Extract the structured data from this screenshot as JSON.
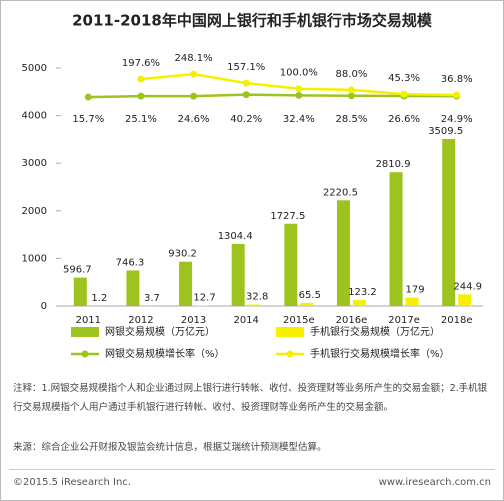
{
  "chart_data": {
    "type": "bar_line",
    "title": "2011-2018年中国网上银行和手机银行市场交易规模",
    "categories": [
      "2011",
      "2012",
      "2013",
      "2014",
      "2015e",
      "2016e",
      "2017e",
      "2018e"
    ],
    "series": [
      {
        "name": "网银交易规模（万亿元）",
        "type": "bar",
        "color": "#9dc41e",
        "values": [
          596.7,
          746.3,
          930.2,
          1304.4,
          1727.5,
          2220.5,
          2810.9,
          3509.5
        ]
      },
      {
        "name": "手机银行交易规模（万亿元）",
        "type": "bar",
        "color": "#f5f000",
        "values": [
          1.2,
          3.7,
          12.7,
          32.8,
          65.5,
          123.2,
          179.0,
          244.9
        ]
      },
      {
        "name": "网银交易规模增长率（%）",
        "type": "line",
        "axis": "y2",
        "color": "#9dc41e",
        "values": [
          15.7,
          25.1,
          24.6,
          40.2,
          32.4,
          28.5,
          26.6,
          24.9
        ],
        "value_labels": [
          "15.7%",
          "25.1%",
          "24.6%",
          "40.2%",
          "32.4%",
          "28.5%",
          "26.6%",
          "24.9%"
        ]
      },
      {
        "name": "手机银行交易规模增长率（%）",
        "type": "line",
        "axis": "y2",
        "color": "#f5f000",
        "values": [
          null,
          197.6,
          248.1,
          157.1,
          100.0,
          88.0,
          45.3,
          36.8
        ],
        "value_labels": [
          null,
          "197.6%",
          "248.1%",
          "157.1%",
          "100.0%",
          "88.0%",
          "45.3%",
          "36.8%"
        ]
      }
    ],
    "ylim": [
      0,
      5000
    ],
    "yticks": [
      0,
      1000,
      2000,
      3000,
      4000,
      5000
    ],
    "y2lim": [
      -2100,
      310
    ],
    "grid": false
  },
  "notes": [
    "注释：1.网银交易规模指个人和企业通过网上银行进行转帐、收付、投资理财等业务所产生的交易金额；2.手机银行交易规模指个人用户通过手机银行进行转帐、收付、投资理财等业务所产生的交易金额。",
    "来源：综合企业公开财报及银监会统计信息，根据艾瑞统计预测模型估算。"
  ],
  "footer": {
    "left": "©2015.5 iResearch Inc.",
    "right": "www.iresearch.com.cn"
  }
}
